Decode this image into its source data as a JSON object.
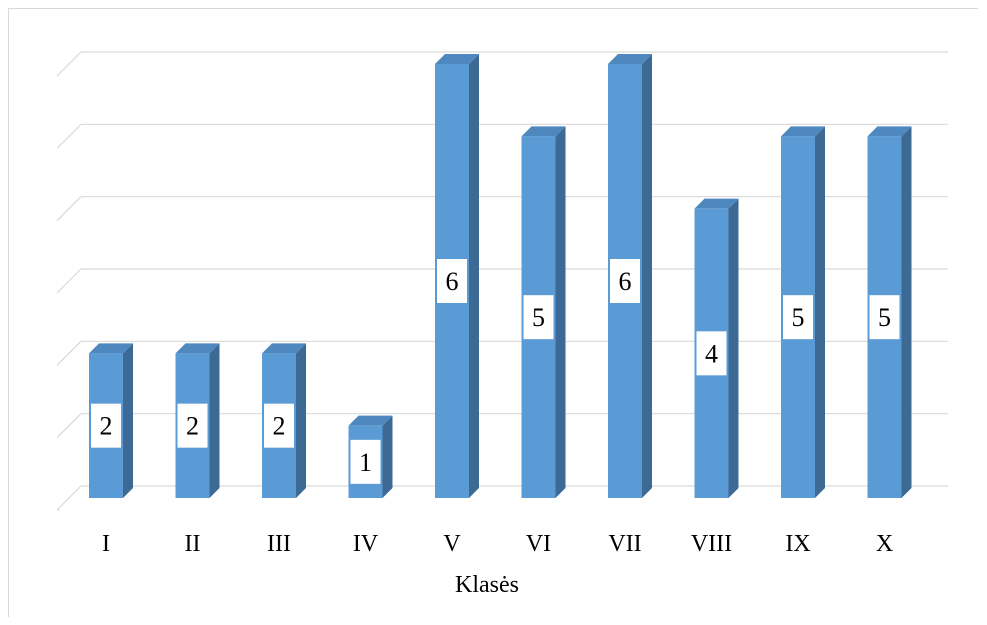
{
  "chart_data": {
    "type": "bar",
    "style": "3d-column",
    "categories": [
      "I",
      "II",
      "III",
      "IV",
      "V",
      "VI",
      "VII",
      "VIII",
      "IX",
      "X"
    ],
    "values": [
      2,
      2,
      2,
      1,
      6,
      5,
      6,
      4,
      5,
      5
    ],
    "xlabel": "Klasės",
    "ylabel": "",
    "ylim": [
      0,
      6
    ],
    "grid": true,
    "legend": "none",
    "data_labels": true,
    "colors": {
      "bar_front": "#5b9bd5",
      "bar_top": "#4f88bf",
      "bar_side": "#3c6a94",
      "grid": "#d9d9d9",
      "label_bg": "#ffffff",
      "text": "#000000"
    }
  }
}
